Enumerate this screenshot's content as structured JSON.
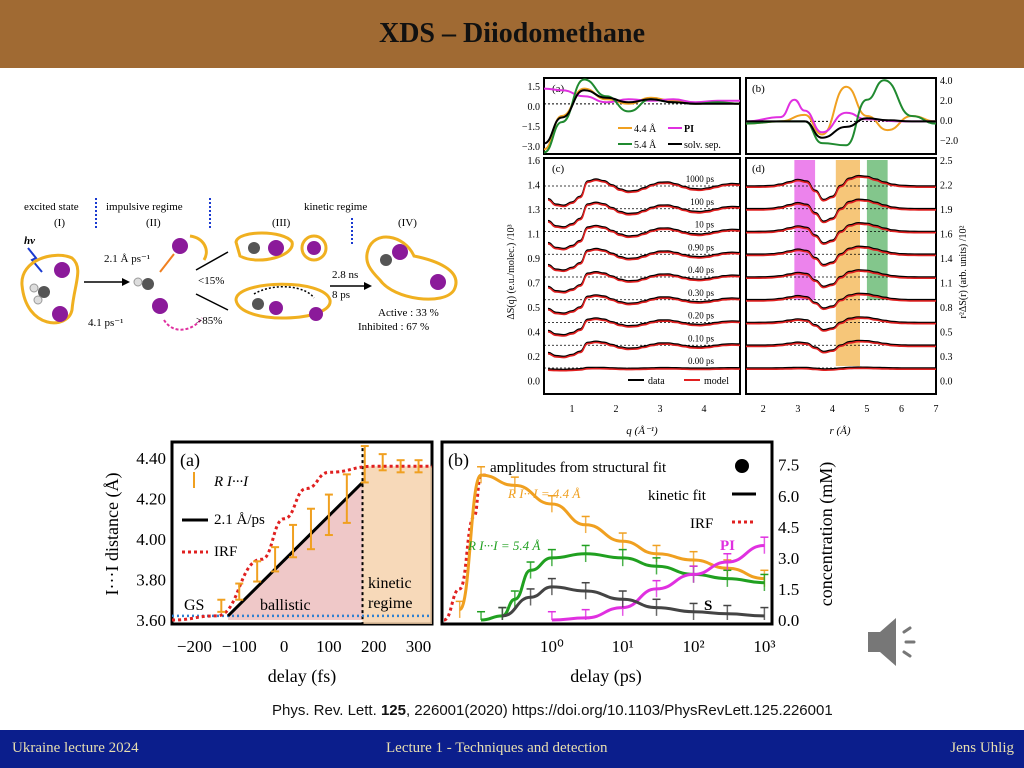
{
  "slide": {
    "title": "XDS – Diiodomethane",
    "citation_prefix": "Phys. Rev. Lett. ",
    "citation_volume": "125",
    "citation_rest": ", 226001(2020) https://doi.org/10.1103/PhysRevLett.125.226001"
  },
  "footer": {
    "left": "Ukraine lecture 2024",
    "center": "Lecture 1 - Techniques and detection",
    "right": "Jens Uhlig"
  },
  "scheme": {
    "header_excited": "excited state",
    "header_impulsive": "impulsive regime",
    "header_kinetic": "kinetic regime",
    "stage_1": "(I)",
    "stage_2": "(II)",
    "stage_3": "(III)",
    "stage_4": "(IV)",
    "hv": "hv",
    "rate_fast": "2.1 Å ps⁻¹",
    "rate_slow": "4.1 ps⁻¹",
    "branch_low": "<15%",
    "branch_high": ">85%",
    "time_ns": "2.8 ns",
    "time_ps": "8 ps",
    "active": "Active :  33 %",
    "inhibited": "Inhibited :  67 %",
    "colors": {
      "iodine": "#8b1a9a",
      "outline": "#f0b020",
      "carbon": "#555555"
    }
  },
  "chart_data": [
    {
      "id": "top-a",
      "type": "line",
      "panel_label": "(a)",
      "xlabel": "q (Å⁻¹)",
      "ylabel": "ΔS(q) (e.u./molec.) /10³",
      "xlim": [
        0.6,
        5.0
      ],
      "ylim": [
        -3.3,
        1.7
      ],
      "yticks": [
        "1.5",
        "0.0",
        "−1.5",
        "−3.0"
      ],
      "legend": [
        "4.4 Å",
        "PI",
        "5.4 Å",
        "solv. sep."
      ],
      "series": [
        {
          "name": "4.4 Å",
          "color": "#f0a020",
          "x": [
            0.6,
            1,
            1.5,
            2,
            2.5,
            3,
            3.5,
            4,
            4.5,
            5
          ],
          "y": [
            -3,
            -0.8,
            1.0,
            0.3,
            0,
            0.4,
            0.2,
            0,
            0.1,
            0
          ]
        },
        {
          "name": "PI",
          "color": "#e030e0",
          "x": [
            0.6,
            1,
            1.5,
            2,
            2.5,
            3,
            3.5,
            4,
            4.5,
            5
          ],
          "y": [
            1.0,
            0.9,
            0.5,
            0.1,
            0.3,
            0.2,
            0.3,
            0.1,
            0.2,
            0.2
          ]
        },
        {
          "name": "5.4 Å",
          "color": "#208a30",
          "x": [
            0.6,
            1,
            1.5,
            2,
            2.5,
            3,
            3.5,
            4,
            4.5,
            5
          ],
          "y": [
            -3.2,
            -1.2,
            1.6,
            0.5,
            -0.5,
            0.3,
            0.1,
            0,
            0.1,
            0
          ]
        },
        {
          "name": "solv. sep.",
          "color": "#000000",
          "x": [
            0.6,
            1,
            1.5,
            2,
            2.5,
            3,
            3.5,
            4,
            4.5,
            5
          ],
          "y": [
            -2.6,
            -0.9,
            0.9,
            0.4,
            0.1,
            0.3,
            0.1,
            0,
            0,
            0
          ]
        }
      ]
    },
    {
      "id": "top-b",
      "type": "line",
      "panel_label": "(b)",
      "xlabel": "r (Å)",
      "ylabel": "r²ΔS(r) (arb. units) /10²",
      "xlim": [
        1.5,
        7
      ],
      "ylim": [
        -3,
        4
      ],
      "yticks": [
        "4.0",
        "2.0",
        "0.0",
        "−2.0"
      ],
      "series": [
        {
          "name": "4.4 Å",
          "color": "#f0a020",
          "x": [
            1.5,
            2.5,
            3.2,
            3.7,
            4.4,
            5,
            5.6,
            6.3,
            7
          ],
          "y": [
            -0.2,
            0,
            0.6,
            -1.2,
            3.2,
            0.5,
            -0.8,
            0.5,
            0
          ]
        },
        {
          "name": "PI",
          "color": "#e030e0",
          "x": [
            1.5,
            2.5,
            2.9,
            3.2,
            3.7,
            4.4,
            5,
            6,
            7
          ],
          "y": [
            0,
            0.4,
            2.0,
            1.0,
            -1.0,
            0.8,
            0.2,
            0,
            0
          ]
        },
        {
          "name": "5.4 Å",
          "color": "#208a30",
          "x": [
            1.5,
            2.5,
            3.2,
            3.7,
            4.4,
            5,
            5.5,
            6.3,
            7
          ],
          "y": [
            -0.2,
            0,
            0,
            -2.0,
            -2.2,
            2.0,
            3.8,
            0.5,
            -0.2
          ]
        },
        {
          "name": "solv. sep.",
          "color": "#000000",
          "x": [
            1.5,
            2.5,
            3.2,
            3.7,
            4.4,
            5,
            5.6,
            6.3,
            7
          ],
          "y": [
            0,
            0,
            0,
            -1.5,
            -0.5,
            0.3,
            0.1,
            0,
            0
          ]
        }
      ]
    },
    {
      "id": "top-c",
      "type": "line",
      "panel_label": "(c)",
      "xlabel": "q (Å⁻¹)",
      "xticks": [
        "1",
        "2",
        "3",
        "4"
      ],
      "yticks": [
        "1.6",
        "1.4",
        "1.3",
        "1.1",
        "0.9",
        "0.7",
        "0.5",
        "0.4",
        "0.2",
        "0.0"
      ],
      "delays": [
        "1000 ps",
        "100 ps",
        "10 ps",
        "0.90 ps",
        "0.40 ps",
        "0.30 ps",
        "0.20 ps",
        "0.10 ps",
        "0.00 ps"
      ],
      "legend": [
        "data",
        "model"
      ],
      "series_colors": {
        "data": "#000000",
        "model": "#e02020"
      }
    },
    {
      "id": "top-d",
      "type": "line",
      "panel_label": "(d)",
      "xlabel": "r (Å)",
      "xticks": [
        "2",
        "3",
        "4",
        "5",
        "6",
        "7"
      ],
      "yticks": [
        "2.5",
        "2.2",
        "1.9",
        "1.6",
        "1.4",
        "1.1",
        "0.8",
        "0.5",
        "0.3",
        "0.0"
      ],
      "bands": [
        {
          "name": "PI",
          "from": 2.9,
          "to": 3.5,
          "color": "#e030e0"
        },
        {
          "name": "4.4 Å",
          "from": 4.1,
          "to": 4.8,
          "color": "#f0a020"
        },
        {
          "name": "5.4 Å",
          "from": 5.0,
          "to": 5.6,
          "color": "#30a040"
        }
      ]
    },
    {
      "id": "bottom-a",
      "type": "line",
      "panel_label": "(a)",
      "xlabel": "delay (fs)",
      "ylabel": "I···I distance (Å)",
      "xlim": [
        -250,
        330
      ],
      "ylim": [
        3.58,
        4.48
      ],
      "xticks": [
        "−200",
        "−100",
        "0",
        "100",
        "200",
        "300"
      ],
      "yticks": [
        "4.40",
        "4.20",
        "4.00",
        "3.80",
        "3.60"
      ],
      "legend": [
        "R I···I",
        "2.1 Å/ps",
        "IRF"
      ],
      "region_labels": [
        "GS",
        "ballistic",
        "kinetic",
        "regime"
      ],
      "points": {
        "x": [
          -140,
          -100,
          -60,
          -20,
          20,
          60,
          100,
          140,
          180,
          220,
          260,
          300
        ],
        "y": [
          3.67,
          3.74,
          3.84,
          3.9,
          3.99,
          4.05,
          4.12,
          4.2,
          4.37,
          4.38,
          4.36,
          4.36
        ],
        "err": [
          0.03,
          0.04,
          0.05,
          0.06,
          0.08,
          0.1,
          0.1,
          0.12,
          0.09,
          0.04,
          0.03,
          0.03
        ]
      },
      "line": {
        "x": [
          -125,
          175
        ],
        "y": [
          3.62,
          4.28
        ]
      },
      "irf": {
        "x": [
          -250,
          -150,
          -50,
          0,
          50,
          100,
          200,
          330
        ],
        "y": [
          3.6,
          3.62,
          3.9,
          4.1,
          4.25,
          4.33,
          4.36,
          4.36
        ]
      }
    },
    {
      "id": "bottom-b",
      "type": "line",
      "panel_label": "(b)",
      "xlabel": "delay (ps)",
      "ylabel": "concentration (mM)",
      "xscale": "log",
      "xticks": [
        "10⁰",
        "10¹",
        "10²",
        "10³"
      ],
      "yticks": [
        "7.5",
        "6.0",
        "4.5",
        "3.0",
        "1.5",
        "0.0"
      ],
      "ylim": [
        0,
        8.5
      ],
      "legend": [
        "amplitudes from structural fit",
        "kinetic fit",
        "IRF"
      ],
      "labels": {
        "r44": "R I···I = 4.4 Å",
        "r54": "R I···I = 5.4 Å",
        "pi": "PI",
        "s": "S"
      },
      "series": [
        {
          "name": "R 4.4 Å",
          "color": "#f0a020",
          "x": [
            0.05,
            0.1,
            0.3,
            1,
            3,
            10,
            30,
            100,
            300,
            1000
          ],
          "y": [
            0.5,
            7.0,
            6.5,
            5.6,
            4.6,
            3.8,
            3.2,
            2.9,
            2.5,
            2.0
          ]
        },
        {
          "name": "R 5.4 Å",
          "color": "#20a020",
          "x": [
            0.1,
            0.2,
            0.3,
            0.5,
            1,
            3,
            10,
            30,
            100,
            300,
            1000
          ],
          "y": [
            0,
            0.2,
            1.0,
            2.4,
            3.0,
            3.2,
            3.0,
            2.6,
            2.2,
            2.0,
            1.8
          ]
        },
        {
          "name": "PI",
          "color": "#e030e0",
          "x": [
            1,
            3,
            10,
            30,
            100,
            300,
            1000
          ],
          "y": [
            0,
            0.1,
            0.6,
            1.5,
            2.2,
            2.8,
            3.6
          ]
        },
        {
          "name": "S",
          "color": "#444444",
          "x": [
            0.2,
            0.5,
            1,
            3,
            10,
            30,
            100,
            300,
            1000
          ],
          "y": [
            0.2,
            1.1,
            1.6,
            1.4,
            1.0,
            0.6,
            0.4,
            0.3,
            0.2
          ]
        }
      ],
      "irf": {
        "x": [
          0.03,
          0.05,
          0.08,
          0.1,
          0.12
        ],
        "y": [
          0,
          1.5,
          5.0,
          7.0,
          7.0
        ]
      }
    }
  ]
}
